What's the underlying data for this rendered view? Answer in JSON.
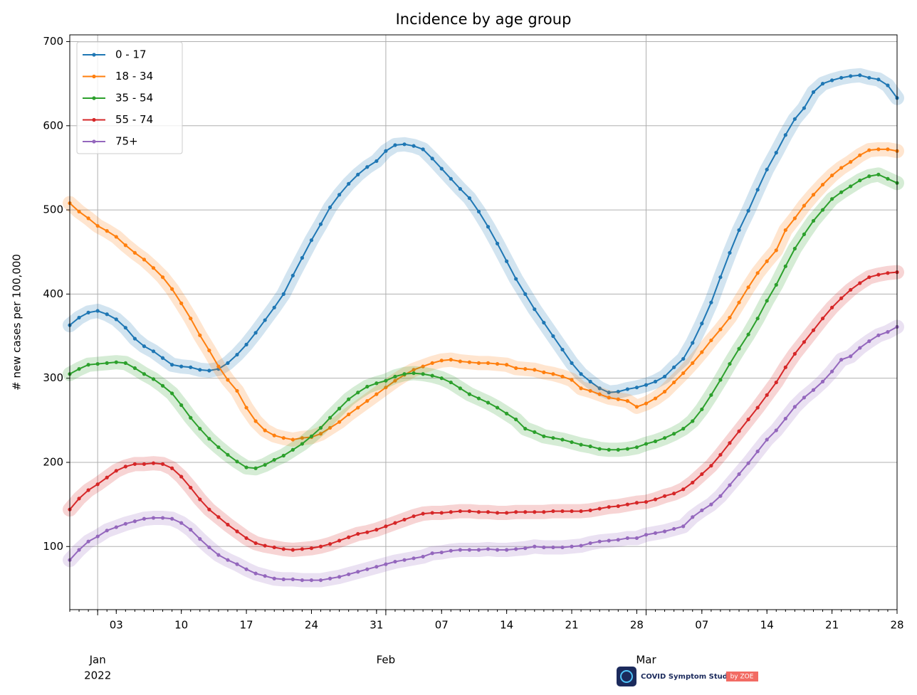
{
  "chart_data": {
    "type": "line",
    "title": "Incidence by age group",
    "ylabel": "# new cases per 100,000",
    "x": [
      "2021-12-29",
      "2021-12-30",
      "2021-12-31",
      "2022-01-01",
      "2022-01-02",
      "2022-01-03",
      "2022-01-04",
      "2022-01-05",
      "2022-01-06",
      "2022-01-07",
      "2022-01-08",
      "2022-01-09",
      "2022-01-10",
      "2022-01-11",
      "2022-01-12",
      "2022-01-13",
      "2022-01-14",
      "2022-01-15",
      "2022-01-16",
      "2022-01-17",
      "2022-01-18",
      "2022-01-19",
      "2022-01-20",
      "2022-01-21",
      "2022-01-22",
      "2022-01-23",
      "2022-01-24",
      "2022-01-25",
      "2022-01-26",
      "2022-01-27",
      "2022-01-28",
      "2022-01-29",
      "2022-01-30",
      "2022-01-31",
      "2022-02-01",
      "2022-02-02",
      "2022-02-03",
      "2022-02-04",
      "2022-02-05",
      "2022-02-06",
      "2022-02-07",
      "2022-02-08",
      "2022-02-09",
      "2022-02-10",
      "2022-02-11",
      "2022-02-12",
      "2022-02-13",
      "2022-02-14",
      "2022-02-15",
      "2022-02-16",
      "2022-02-17",
      "2022-02-18",
      "2022-02-19",
      "2022-02-20",
      "2022-02-21",
      "2022-02-22",
      "2022-02-23",
      "2022-02-24",
      "2022-02-25",
      "2022-02-26",
      "2022-02-27",
      "2022-02-28",
      "2022-03-01",
      "2022-03-02",
      "2022-03-03",
      "2022-03-04",
      "2022-03-05",
      "2022-03-06",
      "2022-03-07",
      "2022-03-08",
      "2022-03-09",
      "2022-03-10",
      "2022-03-11",
      "2022-03-12",
      "2022-03-13",
      "2022-03-14",
      "2022-03-15",
      "2022-03-16",
      "2022-03-17",
      "2022-03-18",
      "2022-03-19",
      "2022-03-20",
      "2022-03-21",
      "2022-03-22",
      "2022-03-23",
      "2022-03-24",
      "2022-03-25",
      "2022-03-26",
      "2022-03-27",
      "2022-03-28"
    ],
    "series": [
      {
        "name": "0 - 17",
        "color": "#1f77b4",
        "values": [
          363,
          372,
          378,
          380,
          376,
          370,
          360,
          347,
          338,
          332,
          324,
          316,
          314,
          313,
          310,
          309,
          311,
          318,
          328,
          340,
          354,
          369,
          384,
          400,
          422,
          443,
          464,
          483,
          503,
          518,
          531,
          542,
          551,
          558,
          570,
          577,
          578,
          576,
          572,
          561,
          549,
          537,
          525,
          514,
          498,
          480,
          460,
          439,
          418,
          400,
          382,
          366,
          350,
          334,
          318,
          305,
          296,
          288,
          283,
          284,
          287,
          289,
          292,
          296,
          302,
          313,
          323,
          342,
          365,
          390,
          420,
          449,
          476,
          499,
          524,
          548,
          568,
          589,
          608,
          621,
          640,
          650,
          654,
          657,
          659,
          660,
          657,
          655,
          648,
          633
        ]
      },
      {
        "name": "18 - 34",
        "color": "#ff7f0e",
        "values": [
          508,
          498,
          490,
          481,
          475,
          468,
          458,
          449,
          441,
          431,
          420,
          406,
          389,
          371,
          351,
          333,
          314,
          298,
          285,
          265,
          249,
          238,
          232,
          229,
          227,
          229,
          230,
          234,
          241,
          248,
          257,
          265,
          273,
          281,
          289,
          297,
          304,
          310,
          314,
          318,
          321,
          322,
          320,
          319,
          318,
          318,
          317,
          316,
          312,
          311,
          310,
          307,
          305,
          302,
          298,
          288,
          285,
          281,
          277,
          275,
          273,
          266,
          270,
          276,
          284,
          295,
          306,
          318,
          331,
          345,
          358,
          372,
          390,
          408,
          425,
          439,
          452,
          476,
          490,
          505,
          518,
          530,
          541,
          550,
          557,
          565,
          571,
          572,
          572,
          570
        ]
      },
      {
        "name": "35 - 54",
        "color": "#2ca02c",
        "values": [
          305,
          311,
          316,
          317,
          318,
          319,
          318,
          312,
          305,
          299,
          291,
          282,
          268,
          253,
          240,
          228,
          218,
          209,
          201,
          194,
          193,
          197,
          203,
          208,
          215,
          222,
          231,
          241,
          253,
          264,
          275,
          283,
          290,
          294,
          297,
          302,
          305,
          306,
          305,
          303,
          300,
          295,
          288,
          281,
          276,
          271,
          265,
          258,
          251,
          240,
          236,
          231,
          229,
          227,
          224,
          221,
          219,
          216,
          215,
          215,
          216,
          218,
          222,
          225,
          229,
          234,
          240,
          249,
          263,
          280,
          298,
          317,
          335,
          352,
          371,
          392,
          411,
          433,
          454,
          471,
          487,
          500,
          513,
          521,
          528,
          535,
          540,
          542,
          537,
          532
        ]
      },
      {
        "name": "55 - 74",
        "color": "#d62728",
        "values": [
          144,
          157,
          167,
          174,
          182,
          190,
          195,
          198,
          198,
          199,
          198,
          193,
          183,
          170,
          156,
          144,
          135,
          126,
          118,
          110,
          104,
          101,
          99,
          97,
          96,
          97,
          98,
          100,
          103,
          107,
          111,
          115,
          117,
          120,
          124,
          128,
          132,
          136,
          139,
          140,
          140,
          141,
          142,
          142,
          141,
          141,
          140,
          140,
          141,
          141,
          141,
          141,
          142,
          142,
          142,
          142,
          143,
          145,
          147,
          148,
          150,
          152,
          153,
          156,
          160,
          163,
          168,
          176,
          186,
          196,
          209,
          223,
          237,
          251,
          265,
          280,
          295,
          313,
          329,
          343,
          357,
          371,
          384,
          395,
          405,
          413,
          420,
          423,
          425,
          426
        ]
      },
      {
        "name": "75+",
        "color": "#9467bd",
        "values": [
          84,
          96,
          106,
          112,
          119,
          123,
          127,
          130,
          133,
          134,
          134,
          133,
          128,
          120,
          109,
          99,
          90,
          84,
          79,
          73,
          68,
          65,
          62,
          61,
          61,
          60,
          60,
          60,
          62,
          64,
          67,
          70,
          73,
          76,
          79,
          82,
          84,
          86,
          88,
          92,
          93,
          95,
          96,
          96,
          96,
          97,
          96,
          96,
          97,
          98,
          100,
          99,
          99,
          99,
          100,
          101,
          104,
          106,
          107,
          108,
          110,
          110,
          114,
          116,
          118,
          121,
          124,
          135,
          143,
          150,
          160,
          173,
          186,
          199,
          213,
          227,
          238,
          252,
          266,
          277,
          286,
          296,
          308,
          322,
          326,
          336,
          344,
          351,
          355,
          361
        ]
      }
    ],
    "xlim": [
      "2021-12-29",
      "2022-03-28"
    ],
    "xticks": [
      {
        "value": "2022-01-03",
        "label": "03"
      },
      {
        "value": "2022-01-10",
        "label": "10"
      },
      {
        "value": "2022-01-17",
        "label": "17"
      },
      {
        "value": "2022-01-24",
        "label": "24"
      },
      {
        "value": "2022-01-31",
        "label": "31"
      },
      {
        "value": "2022-02-07",
        "label": "07"
      },
      {
        "value": "2022-02-14",
        "label": "14"
      },
      {
        "value": "2022-02-21",
        "label": "21"
      },
      {
        "value": "2022-02-28",
        "label": "28"
      },
      {
        "value": "2022-03-07",
        "label": "07"
      },
      {
        "value": "2022-03-14",
        "label": "14"
      },
      {
        "value": "2022-03-21",
        "label": "21"
      },
      {
        "value": "2022-03-28",
        "label": "28"
      }
    ],
    "xticks_major": [
      {
        "value": "2022-01-01",
        "label": "Jan"
      },
      {
        "value": "2022-02-01",
        "label": "Feb"
      },
      {
        "value": "2022-03-01",
        "label": "Mar"
      }
    ],
    "x_year_label": "2022",
    "ylim": [
      25,
      708
    ],
    "yticks": [
      100,
      200,
      300,
      400,
      500,
      600,
      700
    ],
    "grid": true,
    "legend": "upper left"
  },
  "logo": {
    "text": "COVID Symptom Study",
    "badge": "by ZOE"
  }
}
